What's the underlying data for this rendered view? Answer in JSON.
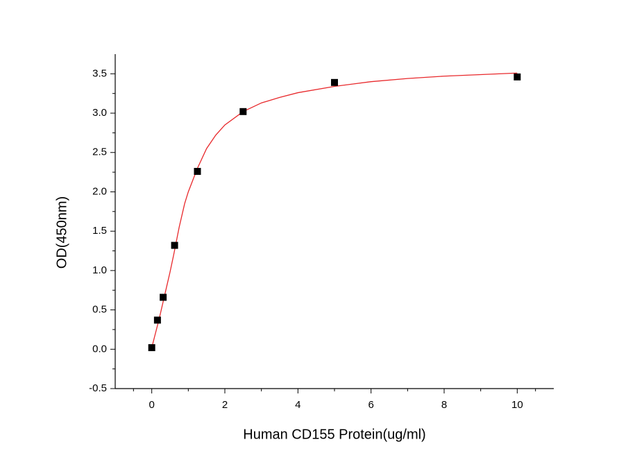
{
  "chart_data": {
    "type": "scatter",
    "x_label": "Human CD155 Protein(ug/ml)",
    "y_label": "OD(450nm)",
    "x": [
      0,
      0.156,
      0.3125,
      0.625,
      1.25,
      2.5,
      5,
      10
    ],
    "values": [
      0.02,
      0.37,
      0.66,
      1.32,
      2.26,
      3.02,
      3.39,
      3.46
    ],
    "color": "#000000",
    "fit": {
      "color": "#e8282b",
      "x": [
        0,
        0.1,
        0.2,
        0.3,
        0.4,
        0.5,
        0.6,
        0.75,
        0.9,
        1.0,
        1.25,
        1.5,
        1.75,
        2.0,
        2.5,
        3.0,
        3.5,
        4.0,
        5.0,
        6.0,
        7.0,
        8.0,
        9.0,
        10.0
      ],
      "values": [
        0.02,
        0.2,
        0.38,
        0.58,
        0.78,
        0.98,
        1.2,
        1.55,
        1.85,
        2.0,
        2.3,
        2.55,
        2.72,
        2.85,
        3.02,
        3.13,
        3.2,
        3.26,
        3.34,
        3.4,
        3.44,
        3.47,
        3.49,
        3.51
      ]
    },
    "xlim": [
      -1,
      11
    ],
    "ylim": [
      -0.5,
      3.75
    ],
    "xticks": [
      0,
      2,
      4,
      6,
      8,
      10
    ],
    "yticks": [
      -0.5,
      {
        "value": 0,
        "label": "0.0"
      },
      0.5,
      {
        "value": 1,
        "label": "1.0"
      },
      1.5,
      {
        "value": 2,
        "label": "2.0"
      },
      2.5,
      {
        "value": 3,
        "label": "3.0"
      },
      3.5
    ]
  }
}
